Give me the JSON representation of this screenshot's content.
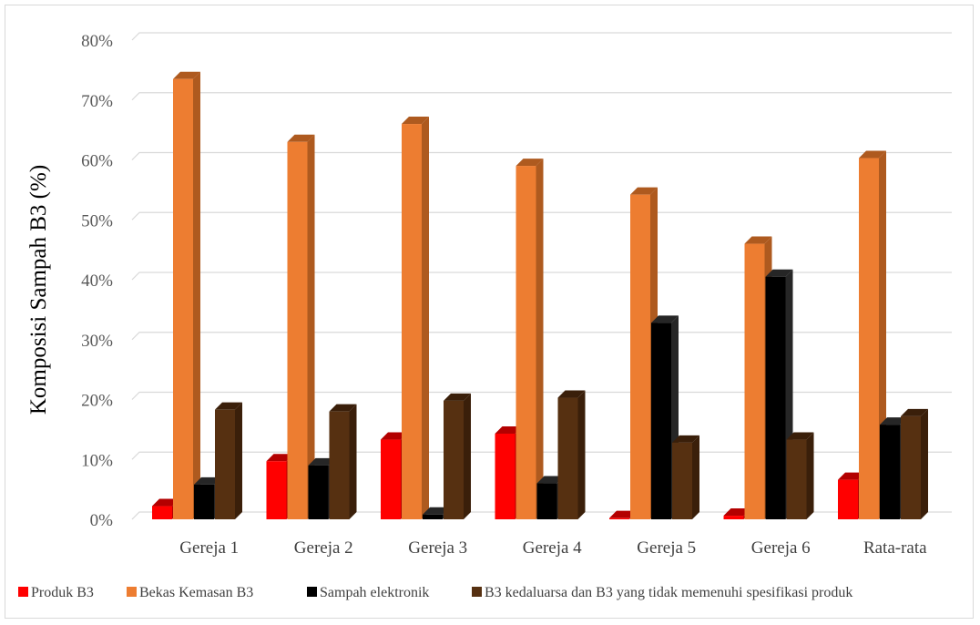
{
  "chart_data": {
    "type": "bar",
    "title": "",
    "xlabel": "",
    "ylabel": "Komposisi Sampah B3 (%)",
    "ylim": [
      0,
      80
    ],
    "y_ticks": [
      "0%",
      "10%",
      "20%",
      "30%",
      "40%",
      "50%",
      "60%",
      "70%",
      "80%"
    ],
    "y_tick_values": [
      0,
      10,
      20,
      30,
      40,
      50,
      60,
      70,
      80
    ],
    "grid": true,
    "three_d": true,
    "legend_position": "bottom",
    "categories": [
      "Gereja 1",
      "Gereja 2",
      "Gereja 3",
      "Gereja 4",
      "Gereja 5",
      "Gereja 6",
      "Rata-rata"
    ],
    "series": [
      {
        "name": "Produk  B3",
        "color": "#ff0000",
        "side_color": "#b30000",
        "values": [
          2.2,
          9.7,
          13.3,
          14.3,
          0.2,
          0.6,
          6.6
        ]
      },
      {
        "name": "Bekas Kemasan B3",
        "color": "#ed7d31",
        "side_color": "#ae5a1f",
        "values": [
          73.5,
          63.0,
          66.0,
          59.0,
          54.2,
          46.0,
          60.3
        ]
      },
      {
        "name": "Sampah elektronik",
        "color": "#000000",
        "side_color": "#262626",
        "values": [
          5.8,
          9.0,
          0.8,
          6.0,
          32.8,
          40.5,
          15.8
        ]
      },
      {
        "name": "B3 kedaluarsa dan B3 yang tidak memenuhi spesifikasi produk",
        "color": "#563011",
        "side_color": "#3a1f0a",
        "values": [
          18.3,
          18.0,
          19.8,
          20.3,
          12.8,
          13.3,
          17.2
        ]
      }
    ]
  }
}
